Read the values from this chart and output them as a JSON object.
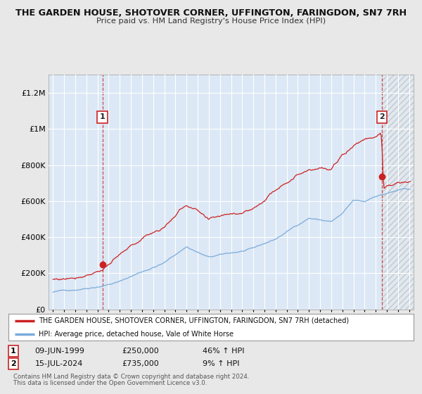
{
  "title": "THE GARDEN HOUSE, SHOTOVER CORNER, UFFINGTON, FARINGDON, SN7 7RH",
  "subtitle": "Price paid vs. HM Land Registry's House Price Index (HPI)",
  "background_color": "#e8e8e8",
  "plot_bg_color": "#dce8f5",
  "hpi_color": "#7aabdc",
  "price_color": "#cc2222",
  "marker_color": "#cc2222",
  "transaction1": {
    "date": "09-JUN-1999",
    "year": 1999.44,
    "price": 250000,
    "label": "1",
    "pct": "46%",
    "dir": "↑"
  },
  "transaction2": {
    "date": "15-JUL-2024",
    "year": 2024.54,
    "price": 735000,
    "label": "2",
    "pct": "9%",
    "dir": "↑"
  },
  "legend_text1": "THE GARDEN HOUSE, SHOTOVER CORNER, UFFINGTON, FARINGDON, SN7 7RH (detached)",
  "legend_text2": "HPI: Average price, detached house, Vale of White Horse",
  "footer1": "Contains HM Land Registry data © Crown copyright and database right 2024.",
  "footer2": "This data is licensed under the Open Government Licence v3.0.",
  "xmin": 1994.6,
  "xmax": 2027.4,
  "ymin": 0,
  "ymax": 1300000,
  "yticks": [
    0,
    200000,
    400000,
    600000,
    800000,
    1000000,
    1200000
  ],
  "hatch_start": 2024.54
}
